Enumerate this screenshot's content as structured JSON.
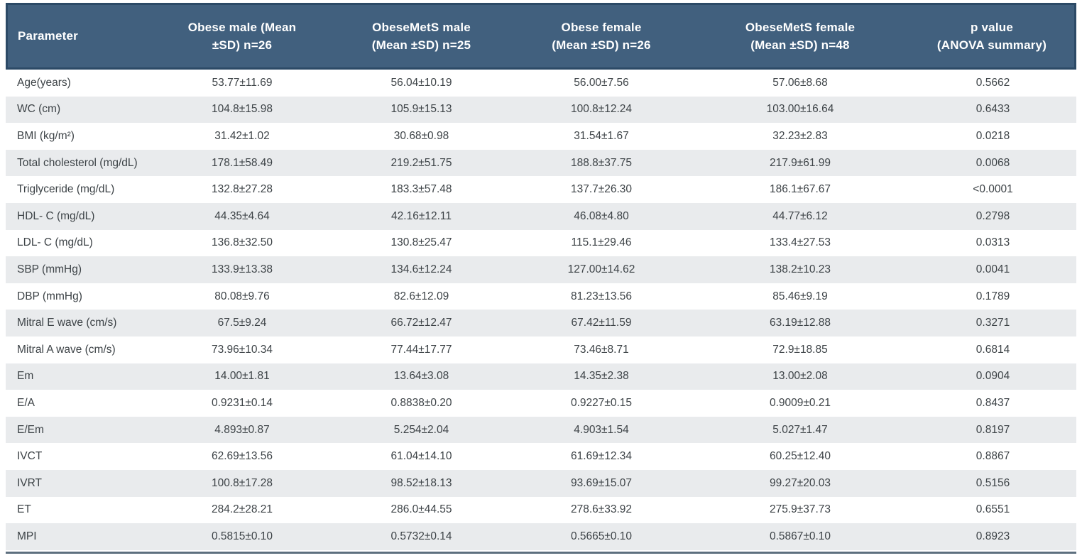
{
  "colors": {
    "header_bg": "#41607e",
    "header_border": "#2c4a66",
    "header_fg": "#ffffff",
    "stripe_bg": "#e9ebed",
    "body_fg": "#3d4347",
    "bottom_rule": "#5d6f7e"
  },
  "chart_data": {
    "type": "table",
    "title": "",
    "columns": [
      {
        "label": "Parameter"
      },
      {
        "label": "Obese male (Mean\n±SD) n=26"
      },
      {
        "label": "ObeseMetS male\n(Mean ±SD) n=25"
      },
      {
        "label": "Obese female\n(Mean ±SD) n=26"
      },
      {
        "label": "ObeseMetS female\n(Mean ±SD) n=48"
      },
      {
        "label": "p value\n(ANOVA summary)"
      }
    ],
    "rows": [
      {
        "parameter": "Age(years)",
        "values": [
          "53.77±11.69",
          "56.04±10.19",
          "56.00±7.56",
          "57.06±8.68",
          "0.5662"
        ]
      },
      {
        "parameter": "WC (cm)",
        "values": [
          "104.8±15.98",
          "105.9±15.13",
          "100.8±12.24",
          "103.00±16.64",
          "0.6433"
        ]
      },
      {
        "parameter": "BMI (kg/m²)",
        "values": [
          "31.42±1.02",
          "30.68±0.98",
          "31.54±1.67",
          "32.23±2.83",
          "0.0218"
        ]
      },
      {
        "parameter": "Total cholesterol (mg/dL)",
        "values": [
          "178.1±58.49",
          "219.2±51.75",
          "188.8±37.75",
          "217.9±61.99",
          "0.0068"
        ]
      },
      {
        "parameter": "Triglyceride (mg/dL)",
        "values": [
          "132.8±27.28",
          "183.3±57.48",
          "137.7±26.30",
          "186.1±67.67",
          "<0.0001"
        ]
      },
      {
        "parameter": "HDL- C (mg/dL)",
        "values": [
          "44.35±4.64",
          "42.16±12.11",
          "46.08±4.80",
          "44.77±6.12",
          "0.2798"
        ]
      },
      {
        "parameter": "LDL- C (mg/dL)",
        "values": [
          "136.8±32.50",
          "130.8±25.47",
          "115.1±29.46",
          "133.4±27.53",
          "0.0313"
        ]
      },
      {
        "parameter": "SBP (mmHg)",
        "values": [
          "133.9±13.38",
          "134.6±12.24",
          "127.00±14.62",
          "138.2±10.23",
          "0.0041"
        ]
      },
      {
        "parameter": "DBP (mmHg)",
        "values": [
          "80.08±9.76",
          "82.6±12.09",
          "81.23±13.56",
          "85.46±9.19",
          "0.1789"
        ]
      },
      {
        "parameter": "Mitral E wave (cm/s)",
        "values": [
          "67.5±9.24",
          "66.72±12.47",
          "67.42±11.59",
          "63.19±12.88",
          "0.3271"
        ]
      },
      {
        "parameter": "Mitral A wave (cm/s)",
        "values": [
          "73.96±10.34",
          "77.44±17.77",
          "73.46±8.71",
          "72.9±18.85",
          "0.6814"
        ]
      },
      {
        "parameter": "Em",
        "values": [
          "14.00±1.81",
          "13.64±3.08",
          "14.35±2.38",
          "13.00±2.08",
          "0.0904"
        ]
      },
      {
        "parameter": "E/A",
        "values": [
          "0.9231±0.14",
          "0.8838±0.20",
          "0.9227±0.15",
          "0.9009±0.21",
          "0.8437"
        ]
      },
      {
        "parameter": "E/Em",
        "values": [
          "4.893±0.87",
          "5.254±2.04",
          "4.903±1.54",
          "5.027±1.47",
          "0.8197"
        ]
      },
      {
        "parameter": "IVCT",
        "values": [
          "62.69±13.56",
          "61.04±14.10",
          "61.69±12.34",
          "60.25±12.40",
          "0.8867"
        ]
      },
      {
        "parameter": "IVRT",
        "values": [
          "100.8±17.28",
          "98.52±18.13",
          "93.69±15.07",
          "99.27±20.03",
          "0.5156"
        ]
      },
      {
        "parameter": "ET",
        "values": [
          "284.2±28.21",
          "286.0±44.55",
          "278.6±33.92",
          "275.9±37.73",
          "0.6551"
        ]
      },
      {
        "parameter": "MPI",
        "values": [
          "0.5815±0.10",
          "0.5732±0.14",
          "0.5665±0.10",
          "0.5867±0.10",
          "0.8923"
        ]
      }
    ]
  }
}
